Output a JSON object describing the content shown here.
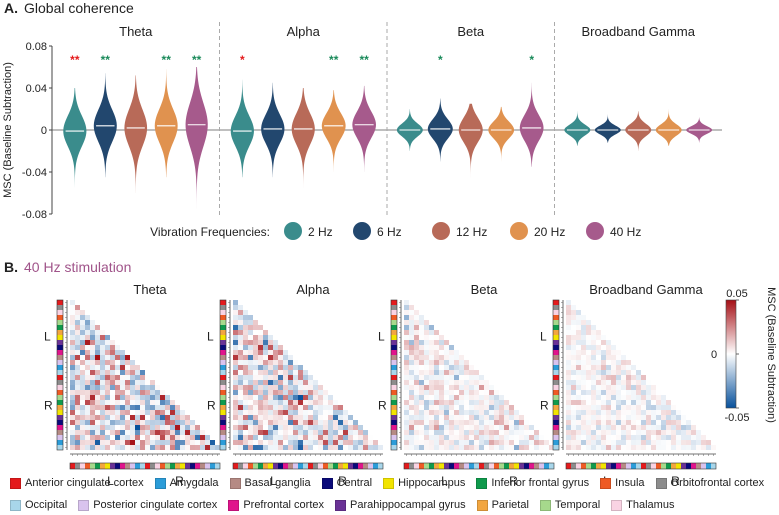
{
  "panel_a": {
    "label": "A.",
    "title": "Global coherence",
    "vib_label": "Vibration Frequencies:"
  },
  "panel_b": {
    "label": "B.",
    "title": "40 Hz stimulation",
    "title_color": "#a0548a"
  },
  "regions": [
    {
      "name": "Anterior cingulate cortex",
      "color": "#e41a1c"
    },
    {
      "name": "Amygdala",
      "color": "#2b9cd8"
    },
    {
      "name": "Basal ganglia",
      "color": "#b58a84"
    },
    {
      "name": "Central",
      "color": "#0a0a7a"
    },
    {
      "name": "Hippocampus",
      "color": "#f2e400"
    },
    {
      "name": "Inferior frontal gyrus",
      "color": "#0f9a4c"
    },
    {
      "name": "Insula",
      "color": "#ee5a24"
    },
    {
      "name": "Orbitofrontal cortex",
      "color": "#8c8c8c"
    },
    {
      "name": "Occipital",
      "color": "#a8d6ea"
    },
    {
      "name": "Posterior cingulate cortex",
      "color": "#d9c3ee"
    },
    {
      "name": "Prefrontal cortex",
      "color": "#e0148c"
    },
    {
      "name": "Parahippocampal gyrus",
      "color": "#6a3296"
    },
    {
      "name": "Parietal",
      "color": "#f2a640"
    },
    {
      "name": "Temporal",
      "color": "#a6d98c"
    },
    {
      "name": "Thalamus",
      "color": "#f9d3e3"
    }
  ],
  "chart_data": [
    {
      "type": "violin",
      "ylabel": "MSC (Baseline Subtraction)",
      "ylim": [
        -0.08,
        0.08
      ],
      "yticks": [
        0.08,
        0.04,
        0,
        -0.04,
        -0.08
      ],
      "yticklabels": [
        "0.08",
        "0.04",
        "0",
        "-0.04",
        "-0.08"
      ],
      "bands": [
        "Theta",
        "Alpha",
        "Beta",
        "Broadband Gamma"
      ],
      "frequencies": [
        {
          "name": "2 Hz",
          "color": "#3a8c8c"
        },
        {
          "name": "6 Hz",
          "color": "#22476e"
        },
        {
          "name": "12 Hz",
          "color": "#b86a58"
        },
        {
          "name": "20 Hz",
          "color": "#e0924f"
        },
        {
          "name": "40 Hz",
          "color": "#a65a8c"
        }
      ],
      "series": [
        {
          "band": "Theta",
          "freq": "2 Hz",
          "median": -0.001,
          "min": -0.055,
          "max": 0.04,
          "sig": "**",
          "sig_color": "#e41a1c"
        },
        {
          "band": "Theta",
          "freq": "6 Hz",
          "median": 0.004,
          "min": -0.045,
          "max": 0.054,
          "sig": "**",
          "sig_color": "#1a8a5a"
        },
        {
          "band": "Theta",
          "freq": "12 Hz",
          "median": 0.002,
          "min": -0.06,
          "max": 0.052,
          "sig": "",
          "sig_color": ""
        },
        {
          "band": "Theta",
          "freq": "20 Hz",
          "median": 0.004,
          "min": -0.045,
          "max": 0.058,
          "sig": "**",
          "sig_color": "#1a8a5a"
        },
        {
          "band": "Theta",
          "freq": "40 Hz",
          "median": 0.005,
          "min": -0.075,
          "max": 0.06,
          "sig": "**",
          "sig_color": "#1a8a5a"
        },
        {
          "band": "Alpha",
          "freq": "2 Hz",
          "median": -0.001,
          "min": -0.045,
          "max": 0.048,
          "sig": "*",
          "sig_color": "#e41a1c"
        },
        {
          "band": "Alpha",
          "freq": "6 Hz",
          "median": 0.001,
          "min": -0.045,
          "max": 0.045,
          "sig": "",
          "sig_color": ""
        },
        {
          "band": "Alpha",
          "freq": "12 Hz",
          "median": 0.001,
          "min": -0.055,
          "max": 0.04,
          "sig": "",
          "sig_color": ""
        },
        {
          "band": "Alpha",
          "freq": "20 Hz",
          "median": 0.004,
          "min": -0.04,
          "max": 0.038,
          "sig": "**",
          "sig_color": "#1a8a5a"
        },
        {
          "band": "Alpha",
          "freq": "40 Hz",
          "median": 0.005,
          "min": -0.04,
          "max": 0.042,
          "sig": "**",
          "sig_color": "#1a8a5a"
        },
        {
          "band": "Beta",
          "freq": "2 Hz",
          "median": 0.0,
          "min": -0.02,
          "max": 0.02,
          "sig": "",
          "sig_color": ""
        },
        {
          "band": "Beta",
          "freq": "6 Hz",
          "median": 0.001,
          "min": -0.03,
          "max": 0.03,
          "sig": "*",
          "sig_color": "#1a8a5a"
        },
        {
          "band": "Beta",
          "freq": "12 Hz",
          "median": 0.0,
          "min": -0.05,
          "max": 0.025,
          "sig": "",
          "sig_color": ""
        },
        {
          "band": "Beta",
          "freq": "20 Hz",
          "median": 0.0,
          "min": -0.03,
          "max": 0.022,
          "sig": "",
          "sig_color": ""
        },
        {
          "band": "Beta",
          "freq": "40 Hz",
          "median": 0.002,
          "min": -0.035,
          "max": 0.045,
          "sig": "*",
          "sig_color": "#1a8a5a"
        },
        {
          "band": "Broadband Gamma",
          "freq": "2 Hz",
          "median": 0.0,
          "min": -0.015,
          "max": 0.018,
          "sig": "",
          "sig_color": ""
        },
        {
          "band": "Broadband Gamma",
          "freq": "6 Hz",
          "median": 0.0,
          "min": -0.012,
          "max": 0.015,
          "sig": "",
          "sig_color": ""
        },
        {
          "band": "Broadband Gamma",
          "freq": "12 Hz",
          "median": 0.0,
          "min": -0.02,
          "max": 0.018,
          "sig": "",
          "sig_color": ""
        },
        {
          "band": "Broadband Gamma",
          "freq": "20 Hz",
          "median": 0.0,
          "min": -0.015,
          "max": 0.02,
          "sig": "",
          "sig_color": ""
        },
        {
          "band": "Broadband Gamma",
          "freq": "40 Hz",
          "median": 0.0,
          "min": -0.012,
          "max": 0.012,
          "sig": "",
          "sig_color": ""
        }
      ]
    },
    {
      "type": "heatmap",
      "subtype": "lower-triangular connectivity matrix",
      "titles": [
        "Theta",
        "Alpha",
        "Beta",
        "Broadband Gamma"
      ],
      "n_regions": 30,
      "hemisphere_labels": [
        "L",
        "R"
      ],
      "intensity": [
        1.0,
        0.85,
        0.45,
        0.3
      ],
      "colorbar": {
        "label": "MSC (Baseline Subtraction)",
        "range": [
          -0.05,
          0.05
        ],
        "ticks": [
          "0.05",
          "0",
          "-0.05"
        ],
        "high_color": "#a50f15",
        "mid_color": "#ffffff",
        "low_color": "#08519c"
      }
    }
  ]
}
